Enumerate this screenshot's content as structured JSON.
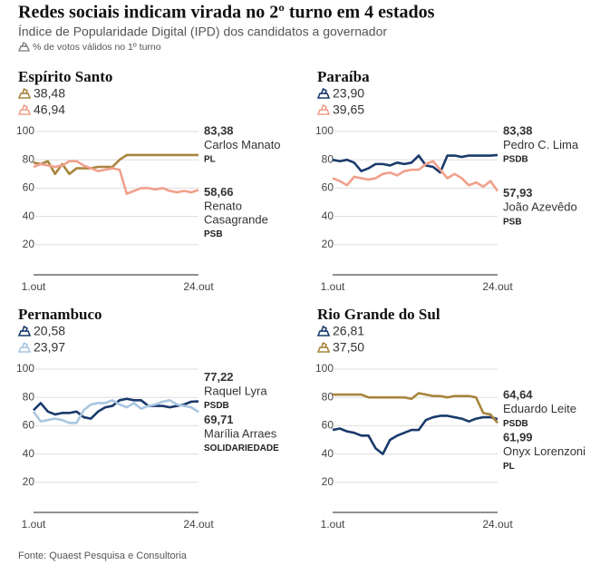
{
  "title": "Redes sociais indicam virada no 2º turno em 4 estados",
  "subtitle": "Índice de Popularidade Digital (IPD) dos candidatos a governador",
  "note": "% de votos válidos no 1º turno",
  "source": "Fonte: Quaest Pesquisa e Consultoria",
  "chart_data": [
    {
      "type": "line",
      "title": "Espírito Santo",
      "categories": [
        "1.out",
        null,
        null,
        null,
        null,
        null,
        null,
        null,
        null,
        null,
        null,
        null,
        null,
        null,
        null,
        null,
        null,
        null,
        null,
        null,
        null,
        null,
        null,
        "24.out"
      ],
      "ylim": [
        0,
        100
      ],
      "yticks": [
        20,
        40,
        60,
        80,
        100
      ],
      "grid": true,
      "series": [
        {
          "name": "Carlos Manato",
          "party": "PL",
          "color": "#a8843c",
          "first_round": {
            "value": 38.48,
            "label": "38,48"
          },
          "values": [
            78,
            77,
            79,
            70,
            77,
            70,
            74,
            74,
            74,
            75,
            75,
            75,
            80,
            83.38,
            83.38,
            83.38,
            83.38,
            83.38,
            83.38,
            83.38,
            83.38,
            83.38,
            83.38,
            83.38
          ],
          "value_labels": [
            null,
            null,
            null,
            null,
            null,
            null,
            null,
            null,
            null,
            null,
            null,
            null,
            null,
            null,
            null,
            null,
            null,
            null,
            null,
            null,
            null,
            null,
            null,
            "83,38"
          ]
        },
        {
          "name": "Renato Casagrande",
          "party": "PSB",
          "color": "#f0a08c",
          "first_round": {
            "value": 46.94,
            "label": "46,94"
          },
          "values": [
            75,
            77,
            76,
            75,
            76,
            79,
            79,
            76,
            74,
            72,
            73,
            74,
            73,
            56,
            58,
            60,
            60,
            59,
            60,
            58,
            57,
            58,
            57,
            58.66
          ],
          "value_labels": [
            null,
            null,
            null,
            null,
            null,
            null,
            null,
            null,
            null,
            null,
            null,
            null,
            null,
            null,
            null,
            null,
            null,
            null,
            null,
            null,
            null,
            null,
            null,
            "58,66"
          ]
        }
      ]
    },
    {
      "type": "line",
      "title": "Paraíba",
      "categories": [
        "1.out",
        null,
        null,
        null,
        null,
        null,
        null,
        null,
        null,
        null,
        null,
        null,
        null,
        null,
        null,
        null,
        null,
        null,
        null,
        null,
        null,
        null,
        null,
        "24.out"
      ],
      "ylim": [
        0,
        100
      ],
      "yticks": [
        20,
        40,
        60,
        80,
        100
      ],
      "grid": true,
      "series": [
        {
          "name": "Pedro C. Lima",
          "party": "PSDB",
          "color": "#1a3a6b",
          "first_round": {
            "value": 23.9,
            "label": "23,90"
          },
          "values": [
            80,
            79,
            80,
            78,
            72,
            74,
            77,
            77,
            76,
            78,
            77,
            78,
            83,
            76,
            75,
            71,
            83,
            83,
            82,
            83,
            83,
            83,
            83,
            83.38
          ],
          "value_labels": [
            null,
            null,
            null,
            null,
            null,
            null,
            null,
            null,
            null,
            null,
            null,
            null,
            null,
            null,
            null,
            null,
            null,
            null,
            null,
            null,
            null,
            null,
            null,
            "83,38"
          ]
        },
        {
          "name": "João Azevêdo",
          "party": "PSB",
          "color": "#f0a08c",
          "first_round": {
            "value": 39.65,
            "label": "39,65"
          },
          "values": [
            67,
            65,
            62,
            68,
            67,
            66,
            67,
            70,
            71,
            69,
            72,
            73,
            73,
            77,
            79,
            73,
            67,
            70,
            67,
            62,
            64,
            61,
            65,
            57.93
          ],
          "value_labels": [
            null,
            null,
            null,
            null,
            null,
            null,
            null,
            null,
            null,
            null,
            null,
            null,
            null,
            null,
            null,
            null,
            null,
            null,
            null,
            null,
            null,
            null,
            null,
            "57,93"
          ]
        }
      ]
    },
    {
      "type": "line",
      "title": "Pernambuco",
      "categories": [
        "1.out",
        null,
        null,
        null,
        null,
        null,
        null,
        null,
        null,
        null,
        null,
        null,
        null,
        null,
        null,
        null,
        null,
        null,
        null,
        null,
        null,
        null,
        null,
        "24.out"
      ],
      "ylim": [
        0,
        100
      ],
      "yticks": [
        20,
        40,
        60,
        80,
        100
      ],
      "grid": true,
      "series": [
        {
          "name": "Raquel Lyra",
          "party": "PSDB",
          "color": "#1a3a6b",
          "first_round": {
            "value": 20.58,
            "label": "20,58"
          },
          "values": [
            71,
            76,
            70,
            68,
            69,
            69,
            70,
            66,
            65,
            70,
            73,
            74,
            78,
            79,
            78,
            78,
            74,
            74,
            74,
            73,
            74,
            75,
            77,
            77.22
          ],
          "value_labels": [
            null,
            null,
            null,
            null,
            null,
            null,
            null,
            null,
            null,
            null,
            null,
            null,
            null,
            null,
            null,
            null,
            null,
            null,
            null,
            null,
            null,
            null,
            null,
            "77,22"
          ]
        },
        {
          "name": "Marília Arraes",
          "party": "SOLIDARIEDADE",
          "color": "#a9c6e0",
          "first_round": {
            "value": 23.97,
            "label": "23,97"
          },
          "values": [
            70,
            63,
            64,
            65,
            64,
            62,
            62,
            71,
            75,
            76,
            76,
            78,
            75,
            73,
            76,
            72,
            74,
            75,
            77,
            78,
            75,
            74,
            73,
            69.71
          ],
          "value_labels": [
            null,
            null,
            null,
            null,
            null,
            null,
            null,
            null,
            null,
            null,
            null,
            null,
            null,
            null,
            null,
            null,
            null,
            null,
            null,
            null,
            null,
            null,
            null,
            "69,71"
          ]
        }
      ]
    },
    {
      "type": "line",
      "title": "Rio Grande do Sul",
      "categories": [
        "1.out",
        null,
        null,
        null,
        null,
        null,
        null,
        null,
        null,
        null,
        null,
        null,
        null,
        null,
        null,
        null,
        null,
        null,
        null,
        null,
        null,
        null,
        null,
        "24.out"
      ],
      "ylim": [
        0,
        100
      ],
      "yticks": [
        20,
        40,
        60,
        80,
        100
      ],
      "grid": true,
      "series": [
        {
          "name": "Eduardo Leite",
          "party": "PSDB",
          "color": "#1a3a6b",
          "first_round": {
            "value": 26.81,
            "label": "26,81"
          },
          "values": [
            57,
            58,
            56,
            55,
            53,
            53,
            44,
            40,
            50,
            53,
            55,
            57,
            57,
            64,
            66,
            67,
            67,
            66,
            65,
            63,
            65,
            66,
            66,
            64.64
          ],
          "value_labels": [
            null,
            null,
            null,
            null,
            null,
            null,
            null,
            null,
            null,
            null,
            null,
            null,
            null,
            null,
            null,
            null,
            null,
            null,
            null,
            null,
            null,
            null,
            null,
            "64,64"
          ]
        },
        {
          "name": "Onyx Lorenzoni",
          "party": "PL",
          "color": "#a8843c",
          "first_round": {
            "value": 37.5,
            "label": "37,50"
          },
          "values": [
            82,
            82,
            82,
            82,
            82,
            80,
            80,
            80,
            80,
            80,
            80,
            79,
            83,
            82,
            81,
            81,
            80,
            81,
            81,
            81,
            80,
            69,
            68,
            61.99
          ],
          "value_labels": [
            null,
            null,
            null,
            null,
            null,
            null,
            null,
            null,
            null,
            null,
            null,
            null,
            null,
            null,
            null,
            null,
            null,
            null,
            null,
            null,
            null,
            null,
            null,
            "61,99"
          ]
        }
      ]
    }
  ]
}
